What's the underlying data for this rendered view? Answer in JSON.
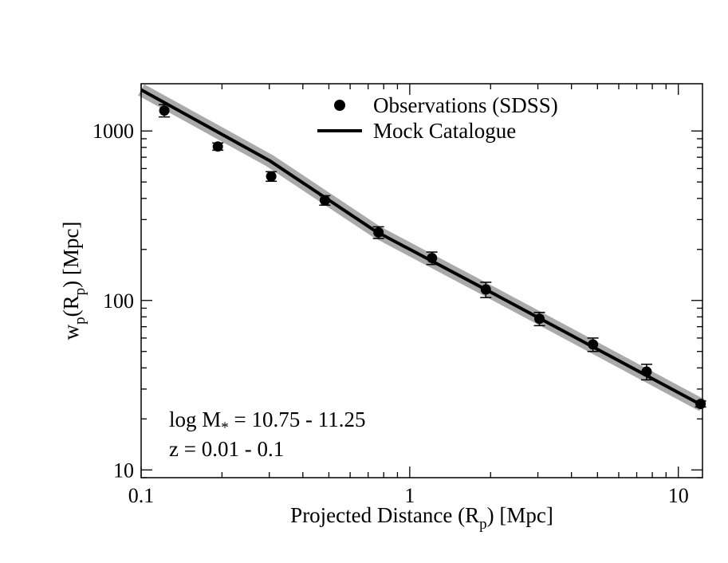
{
  "chart_data": {
    "type": "scatter",
    "title": "",
    "xlabel": {
      "main": "Projected Distance (R",
      "sub": "p",
      "tail": ") [Mpc]"
    },
    "ylabel": {
      "w": "w",
      "sub1": "p",
      "mid": "(R",
      "sub2": "p",
      "tail": ") [Mpc]"
    },
    "xscale": "log",
    "yscale": "log",
    "xlim": [
      0.1,
      12.3
    ],
    "ylim": [
      9.0,
      1900
    ],
    "x_tick_labels": [
      {
        "value": 0.1,
        "label": "0.1"
      },
      {
        "value": 1,
        "label": "1"
      },
      {
        "value": 10,
        "label": "10"
      }
    ],
    "y_tick_labels": [
      {
        "value": 10,
        "label": "10"
      },
      {
        "value": 100,
        "label": "100"
      },
      {
        "value": 1000,
        "label": "1000"
      }
    ],
    "grid": false,
    "legend": {
      "placement": "top-center",
      "entries": [
        {
          "name": "Observations (SDSS)",
          "marker": "circle"
        },
        {
          "name": "Mock Catalogue",
          "marker": "line"
        }
      ]
    },
    "annotations": {
      "line1_prefix": "log M",
      "line1_sub": "*",
      "line1_suffix": " = 10.75 - 11.25",
      "line2": "z = 0.01 - 0.1"
    },
    "series": [
      {
        "name": "Observations (SDSS)",
        "kind": "points",
        "color": "#000000",
        "x": [
          0.122,
          0.193,
          0.305,
          0.483,
          0.765,
          1.21,
          1.92,
          3.04,
          4.81,
          7.62,
          12.1
        ],
        "y": [
          1320,
          810,
          540,
          390,
          252,
          178,
          116,
          78,
          55,
          38,
          24.5
        ],
        "yerr": [
          110,
          40,
          35,
          25,
          20,
          15,
          12,
          7,
          5,
          4,
          1
        ]
      },
      {
        "name": "Mock Catalogue",
        "kind": "line",
        "color": "#000000",
        "band_color": "#aaaaaa",
        "x": [
          0.1,
          0.3,
          0.75,
          2.0,
          12.3
        ],
        "y": [
          1750,
          670,
          255,
          112,
          24
        ]
      }
    ]
  }
}
